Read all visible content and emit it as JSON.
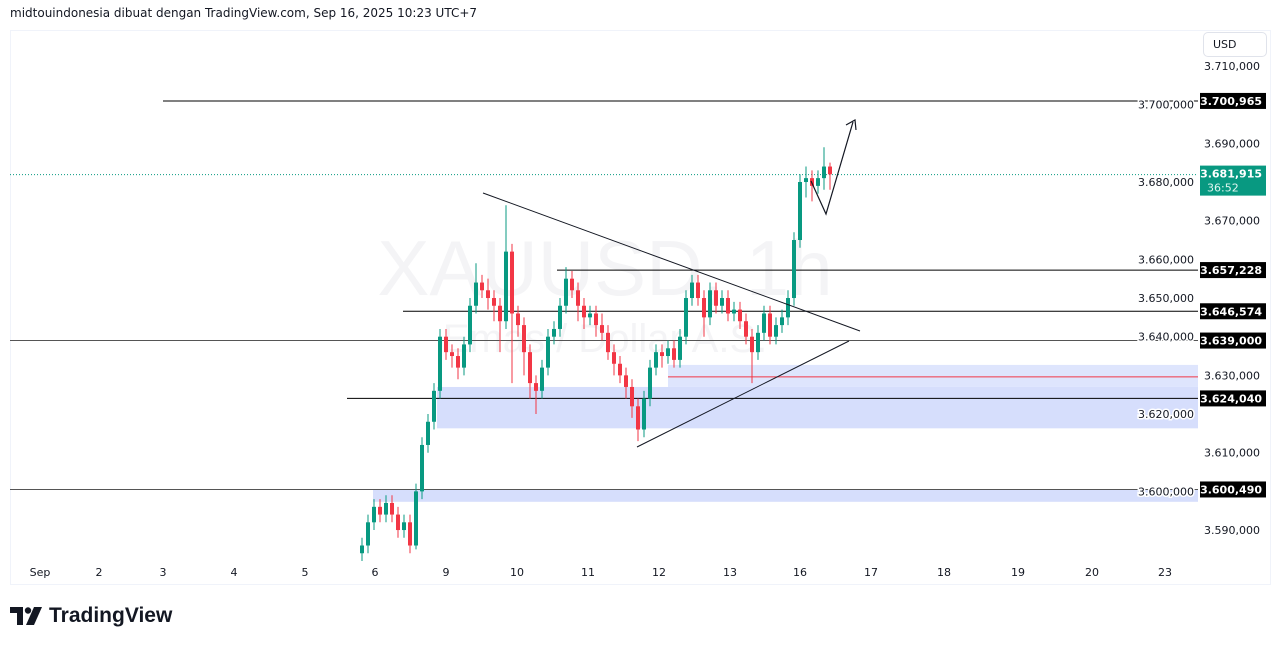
{
  "header": {
    "attribution": "midtouindonesia dibuat dengan TradingView.com, Sep 16, 2025 10:23 UTC+7"
  },
  "currency": "USD",
  "watermark": {
    "symbol": "XAUUSD, 1h",
    "description": "Emas / Dollar A.S."
  },
  "logo": {
    "text": "TradingView"
  },
  "colors": {
    "up": "#089981",
    "down": "#f23645",
    "zone": "#d6defc",
    "level_label_bg": "#000000",
    "last_price_bg": "#089981"
  },
  "chart_data": {
    "type": "candlestick",
    "symbol": "XAUUSD",
    "interval": "1h",
    "ylim": [
      3583,
      3715
    ],
    "y_ticks": [
      "3.710,000",
      "3.700,000",
      "3.690,000",
      "3.680,000",
      "3.670,000",
      "3.660,000",
      "3.650,000",
      "3.640,000",
      "3.630,000",
      "3.620,000",
      "3.610,000",
      "3.600,000",
      "3.590,000"
    ],
    "y_tick_values": [
      3710,
      3700,
      3690,
      3680,
      3670,
      3660,
      3650,
      3640,
      3630,
      3620,
      3610,
      3600,
      3590
    ],
    "x_ticks": [
      "Sep",
      "2",
      "3",
      "4",
      "5",
      "6",
      "9",
      "10",
      "11",
      "12",
      "13",
      "16",
      "17",
      "18",
      "19",
      "20",
      "23"
    ],
    "candles": [
      [
        3584,
        3588,
        3582,
        3586
      ],
      [
        3586,
        3594,
        3584,
        3592
      ],
      [
        3592,
        3598,
        3590,
        3596
      ],
      [
        3596,
        3598,
        3592,
        3594
      ],
      [
        3594,
        3599,
        3592,
        3597
      ],
      [
        3597,
        3599,
        3592,
        3594
      ],
      [
        3594,
        3596,
        3588,
        3590
      ],
      [
        3590,
        3594,
        3588,
        3592
      ],
      [
        3592,
        3594,
        3584,
        3586
      ],
      [
        3586,
        3602,
        3585,
        3600
      ],
      [
        3600,
        3614,
        3598,
        3612
      ],
      [
        3612,
        3620,
        3610,
        3618
      ],
      [
        3618,
        3628,
        3616,
        3626
      ],
      [
        3626,
        3642,
        3624,
        3640
      ],
      [
        3640,
        3642,
        3634,
        3636
      ],
      [
        3636,
        3638,
        3632,
        3635
      ],
      [
        3635,
        3637,
        3629,
        3632
      ],
      [
        3632,
        3640,
        3630,
        3638
      ],
      [
        3638,
        3650,
        3636,
        3648
      ],
      [
        3648,
        3659,
        3646,
        3654
      ],
      [
        3654,
        3656,
        3650,
        3652
      ],
      [
        3652,
        3655,
        3647,
        3650
      ],
      [
        3650,
        3652,
        3644,
        3648
      ],
      [
        3648,
        3650,
        3636,
        3644
      ],
      [
        3644,
        3674,
        3642,
        3662
      ],
      [
        3662,
        3664,
        3628,
        3646
      ],
      [
        3646,
        3648,
        3640,
        3643
      ],
      [
        3643,
        3645,
        3630,
        3636
      ],
      [
        3636,
        3638,
        3624,
        3628
      ],
      [
        3628,
        3630,
        3620,
        3626
      ],
      [
        3626,
        3634,
        3624,
        3632
      ],
      [
        3632,
        3642,
        3630,
        3640
      ],
      [
        3640,
        3644,
        3638,
        3642
      ],
      [
        3642,
        3650,
        3640,
        3648
      ],
      [
        3648,
        3658,
        3646,
        3655
      ],
      [
        3655,
        3657,
        3650,
        3652
      ],
      [
        3652,
        3654,
        3644,
        3648
      ],
      [
        3648,
        3650,
        3642,
        3645
      ],
      [
        3645,
        3648,
        3643,
        3646
      ],
      [
        3646,
        3648,
        3640,
        3643
      ],
      [
        3643,
        3646,
        3639,
        3641
      ],
      [
        3641,
        3643,
        3634,
        3636
      ],
      [
        3636,
        3638,
        3630,
        3633
      ],
      [
        3633,
        3635,
        3628,
        3630
      ],
      [
        3630,
        3632,
        3624,
        3627
      ],
      [
        3627,
        3629,
        3619,
        3622
      ],
      [
        3622,
        3624,
        3613,
        3616
      ],
      [
        3616,
        3626,
        3614,
        3624
      ],
      [
        3624,
        3634,
        3622,
        3632
      ],
      [
        3632,
        3638,
        3630,
        3636
      ],
      [
        3636,
        3638,
        3632,
        3635
      ],
      [
        3635,
        3639,
        3633,
        3637
      ],
      [
        3637,
        3639,
        3632,
        3634
      ],
      [
        3634,
        3642,
        3632,
        3640
      ],
      [
        3640,
        3652,
        3638,
        3650
      ],
      [
        3650,
        3656,
        3648,
        3654
      ],
      [
        3654,
        3656,
        3648,
        3650
      ],
      [
        3650,
        3652,
        3640,
        3645
      ],
      [
        3645,
        3654,
        3643,
        3652
      ],
      [
        3652,
        3654,
        3646,
        3648
      ],
      [
        3648,
        3652,
        3646,
        3650
      ],
      [
        3650,
        3652,
        3644,
        3646
      ],
      [
        3646,
        3649,
        3644,
        3647
      ],
      [
        3647,
        3649,
        3642,
        3644
      ],
      [
        3644,
        3646,
        3638,
        3640
      ],
      [
        3640,
        3642,
        3628,
        3636
      ],
      [
        3636,
        3643,
        3634,
        3641
      ],
      [
        3641,
        3648,
        3639,
        3646
      ],
      [
        3646,
        3648,
        3638,
        3640
      ],
      [
        3640,
        3645,
        3638,
        3643
      ],
      [
        3643,
        3647,
        3641,
        3645
      ],
      [
        3645,
        3652,
        3643,
        3650
      ],
      [
        3650,
        3667,
        3648,
        3665
      ],
      [
        3665,
        3682,
        3663,
        3680
      ],
      [
        3680,
        3684,
        3676,
        3681
      ],
      [
        3681,
        3683,
        3675,
        3679
      ],
      [
        3679,
        3683,
        3677,
        3681
      ],
      [
        3681,
        3689,
        3678,
        3684
      ],
      [
        3684,
        3685,
        3678,
        3682
      ]
    ],
    "levels": [
      {
        "price": 3700.965,
        "label": "3.700,965"
      },
      {
        "price": 3657.228,
        "label": "3.657,228"
      },
      {
        "price": 3646.574,
        "label": "3.646,574"
      },
      {
        "price": 3639.0,
        "label": "3.639,000"
      },
      {
        "price": 3624.04,
        "label": "3.624,040"
      },
      {
        "price": 3600.49,
        "label": "3.600,490"
      }
    ],
    "zones": [
      {
        "top": 3627.0,
        "bottom": 3616.3
      },
      {
        "top": 3632.7,
        "bottom": 3627.0
      },
      {
        "top": 3600.4,
        "bottom": 3597.3
      }
    ],
    "red_line_price": 3629.6,
    "last_price": {
      "price": 3681.915,
      "label": "3.681,915",
      "countdown": "36:52"
    }
  }
}
